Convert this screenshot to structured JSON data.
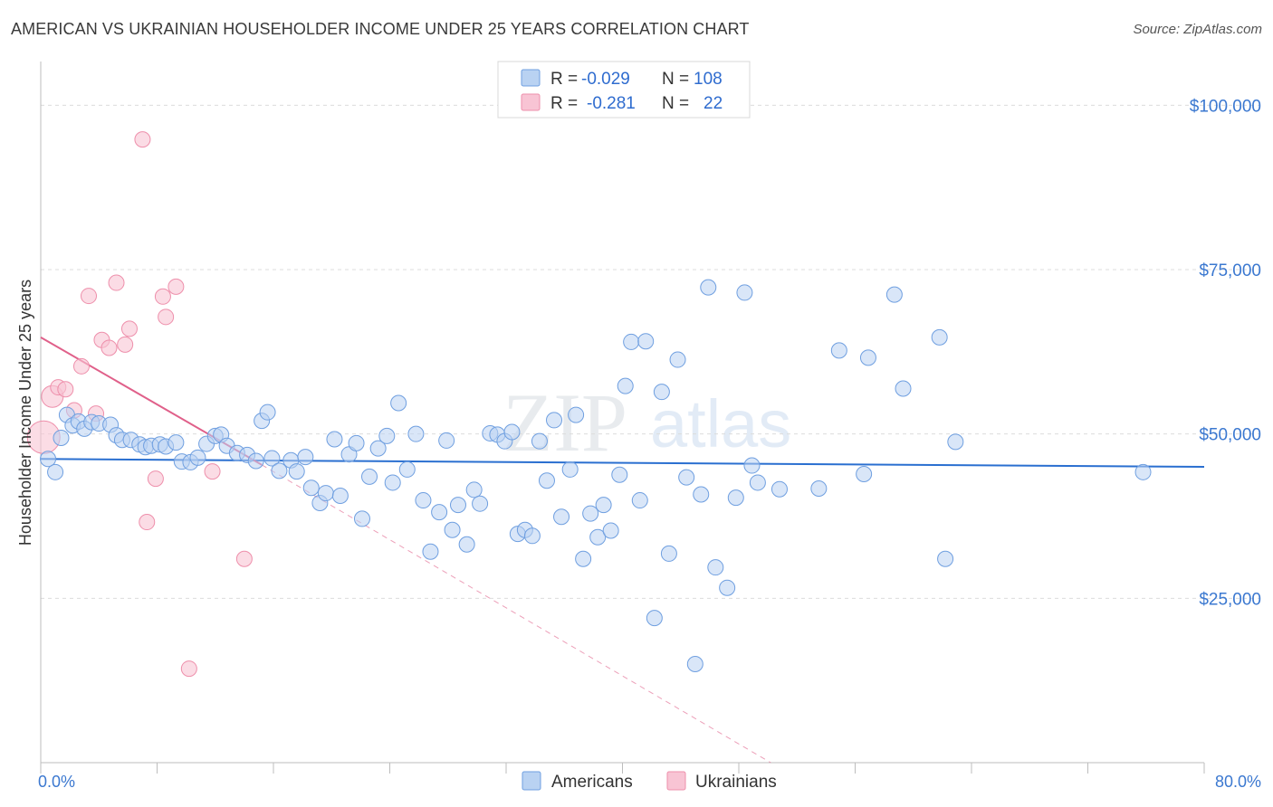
{
  "title": "AMERICAN VS UKRAINIAN HOUSEHOLDER INCOME UNDER 25 YEARS CORRELATION CHART",
  "source": "Source: ZipAtlas.com",
  "watermark": {
    "zip": "ZIP",
    "atlas": "atlas"
  },
  "colors": {
    "americans_fill": "#b9d2f2",
    "americans_stroke": "#6f9fe0",
    "americans_line": "#2a6fd0",
    "ukrainians_fill": "#f8c4d4",
    "ukrainians_stroke": "#ee8fab",
    "ukrainians_line": "#e0608a",
    "axis_text": "#3b78d0"
  },
  "legend": {
    "row1": {
      "r_label": "R =",
      "r_value": "-0.029",
      "n_label": "N =",
      "n_value": "108"
    },
    "row2": {
      "r_label": "R =",
      "r_value": "-0.281",
      "n_label": "N =",
      "n_value": "22"
    }
  },
  "chart_data": {
    "type": "scatter",
    "title": "AMERICAN VS UKRAINIAN HOUSEHOLDER INCOME UNDER 25 YEARS CORRELATION CHART",
    "xlabel": "",
    "ylabel": "Householder Income Under 25 years",
    "xlim": [
      0,
      80
    ],
    "ylim": [
      0,
      105000
    ],
    "x_tick_labels": [
      "0.0%",
      "80.0%"
    ],
    "y_ticks": [
      25000,
      50000,
      75000,
      100000
    ],
    "y_tick_labels": [
      "$25,000",
      "$50,000",
      "$75,000",
      "$100,000"
    ],
    "legend_position": "top-center",
    "series": [
      {
        "name": "Americans",
        "r": -0.029,
        "n": 108,
        "trend": {
          "x0": 0,
          "y0": 46200,
          "x1": 80,
          "y1": 45000
        },
        "points": [
          [
            0.5,
            46200
          ],
          [
            1.0,
            44200
          ],
          [
            1.4,
            49400
          ],
          [
            1.8,
            52900
          ],
          [
            2.2,
            51300
          ],
          [
            2.6,
            51900
          ],
          [
            3.0,
            50800
          ],
          [
            3.5,
            51800
          ],
          [
            4.0,
            51600
          ],
          [
            4.8,
            51400
          ],
          [
            5.2,
            49800
          ],
          [
            5.6,
            49100
          ],
          [
            6.2,
            49100
          ],
          [
            6.8,
            48400
          ],
          [
            7.2,
            48000
          ],
          [
            7.6,
            48200
          ],
          [
            8.2,
            48400
          ],
          [
            8.6,
            48100
          ],
          [
            9.3,
            48700
          ],
          [
            9.7,
            45800
          ],
          [
            10.3,
            45700
          ],
          [
            10.8,
            46400
          ],
          [
            11.4,
            48500
          ],
          [
            12.0,
            49700
          ],
          [
            12.4,
            49900
          ],
          [
            12.8,
            48200
          ],
          [
            13.5,
            47100
          ],
          [
            14.2,
            46800
          ],
          [
            14.8,
            45900
          ],
          [
            15.2,
            52000
          ],
          [
            15.6,
            53300
          ],
          [
            15.9,
            46300
          ],
          [
            16.4,
            44400
          ],
          [
            17.2,
            46000
          ],
          [
            17.6,
            44300
          ],
          [
            18.2,
            46500
          ],
          [
            18.6,
            41800
          ],
          [
            19.2,
            39500
          ],
          [
            19.6,
            41000
          ],
          [
            20.2,
            49200
          ],
          [
            20.6,
            40600
          ],
          [
            21.2,
            46900
          ],
          [
            21.7,
            48600
          ],
          [
            22.1,
            37100
          ],
          [
            22.6,
            43500
          ],
          [
            23.2,
            47800
          ],
          [
            23.8,
            49700
          ],
          [
            24.2,
            42600
          ],
          [
            24.6,
            54700
          ],
          [
            25.2,
            44600
          ],
          [
            25.8,
            50000
          ],
          [
            26.3,
            39900
          ],
          [
            26.8,
            32100
          ],
          [
            27.4,
            38100
          ],
          [
            27.9,
            49000
          ],
          [
            28.3,
            35400
          ],
          [
            28.7,
            39200
          ],
          [
            29.3,
            33200
          ],
          [
            29.8,
            41500
          ],
          [
            30.2,
            39400
          ],
          [
            30.9,
            50100
          ],
          [
            31.4,
            49900
          ],
          [
            31.9,
            48900
          ],
          [
            32.4,
            50300
          ],
          [
            32.8,
            34800
          ],
          [
            33.3,
            35400
          ],
          [
            33.8,
            34500
          ],
          [
            34.3,
            48900
          ],
          [
            34.8,
            42900
          ],
          [
            35.3,
            52100
          ],
          [
            35.8,
            37400
          ],
          [
            36.4,
            44600
          ],
          [
            36.8,
            52900
          ],
          [
            37.3,
            31000
          ],
          [
            37.8,
            37900
          ],
          [
            38.3,
            34300
          ],
          [
            38.7,
            39200
          ],
          [
            39.2,
            35300
          ],
          [
            39.8,
            43800
          ],
          [
            40.2,
            57300
          ],
          [
            40.6,
            64000
          ],
          [
            41.2,
            39900
          ],
          [
            41.6,
            64100
          ],
          [
            42.2,
            22000
          ],
          [
            42.7,
            56400
          ],
          [
            43.2,
            31800
          ],
          [
            43.8,
            61300
          ],
          [
            44.4,
            43400
          ],
          [
            45.0,
            15000
          ],
          [
            45.4,
            40800
          ],
          [
            45.9,
            72300
          ],
          [
            46.4,
            29700
          ],
          [
            47.2,
            26600
          ],
          [
            47.8,
            40300
          ],
          [
            48.4,
            71500
          ],
          [
            48.9,
            45200
          ],
          [
            49.3,
            42600
          ],
          [
            50.8,
            41600
          ],
          [
            53.5,
            41700
          ],
          [
            54.9,
            62700
          ],
          [
            56.6,
            43900
          ],
          [
            56.9,
            61600
          ],
          [
            58.7,
            71200
          ],
          [
            59.3,
            56900
          ],
          [
            61.8,
            64700
          ],
          [
            62.2,
            31000
          ],
          [
            62.9,
            48800
          ],
          [
            75.8,
            44200
          ]
        ]
      },
      {
        "name": "Ukrainians",
        "r": -0.281,
        "n": 22,
        "trend": {
          "x0": 0,
          "y0": 64700,
          "x1": 15.2,
          "y1": 45300
        },
        "trend_extension": {
          "x0": 15.2,
          "y0": 45300,
          "x1": 50.2,
          "y1": 0
        },
        "points": [
          [
            0.2,
            49500
          ],
          [
            0.8,
            55700
          ],
          [
            1.2,
            57100
          ],
          [
            1.7,
            56800
          ],
          [
            2.3,
            53600
          ],
          [
            2.8,
            60300
          ],
          [
            3.3,
            71000
          ],
          [
            4.2,
            64300
          ],
          [
            4.7,
            63100
          ],
          [
            5.2,
            73000
          ],
          [
            5.8,
            63600
          ],
          [
            6.1,
            66000
          ],
          [
            7.0,
            94800
          ],
          [
            7.3,
            36600
          ],
          [
            7.9,
            43200
          ],
          [
            8.4,
            70900
          ],
          [
            8.6,
            67800
          ],
          [
            9.3,
            72400
          ],
          [
            10.2,
            14300
          ],
          [
            11.8,
            44300
          ],
          [
            14.0,
            31000
          ],
          [
            3.8,
            53100
          ]
        ]
      }
    ]
  },
  "bottom_legend": [
    "Americans",
    "Ukrainians"
  ]
}
